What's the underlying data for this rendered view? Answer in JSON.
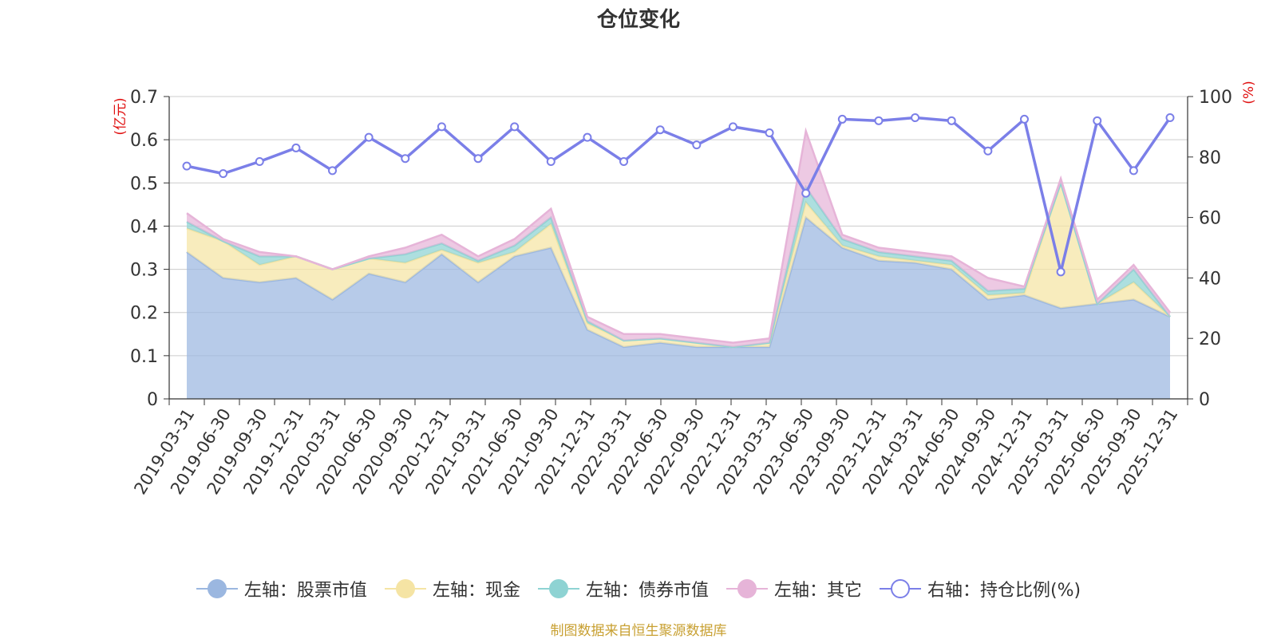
{
  "footer": "制图数据来自恒生聚源数据库",
  "chart_data": {
    "type": "area",
    "title": "仓位变化",
    "ylabel_left": "(亿元)",
    "ylabel_right": "(%)",
    "ylim_left": [
      0,
      0.7
    ],
    "ylim_right": [
      0,
      100
    ],
    "yticks_left": [
      "0",
      "0.1",
      "0.2",
      "0.3",
      "0.4",
      "0.5",
      "0.6",
      "0.7"
    ],
    "yticks_right": [
      "0",
      "20",
      "40",
      "60",
      "80",
      "100"
    ],
    "grid": true,
    "legend_position": "bottom",
    "categories": [
      "2019-03-31",
      "2019-06-30",
      "2019-09-30",
      "2019-12-31",
      "2020-03-31",
      "2020-06-30",
      "2020-09-30",
      "2020-12-31",
      "2021-03-31",
      "2021-06-30",
      "2021-09-30",
      "2021-12-31",
      "2022-03-31",
      "2022-06-30",
      "2022-09-30",
      "2022-12-31",
      "2023-03-31",
      "2023-06-30",
      "2023-09-30",
      "2023-12-31",
      "2024-03-31",
      "2024-06-30",
      "2024-09-30",
      "2024-12-31",
      "2025-03-31",
      "2025-06-30",
      "2025-09-30",
      "2025-12-31"
    ],
    "series": [
      {
        "name": "左轴：股票市值",
        "axis": "left",
        "kind": "stack",
        "color": "#9bb7e0",
        "values": [
          0.34,
          0.28,
          0.27,
          0.28,
          0.23,
          0.29,
          0.27,
          0.335,
          0.27,
          0.33,
          0.35,
          0.16,
          0.12,
          0.13,
          0.12,
          0.12,
          0.12,
          0.42,
          0.35,
          0.32,
          0.315,
          0.3,
          0.23,
          0.24,
          0.21,
          0.22,
          0.23,
          0.19
        ]
      },
      {
        "name": "左轴：现金",
        "axis": "left",
        "kind": "stack",
        "color": "#f5e4a4",
        "values": [
          0.055,
          0.085,
          0.04,
          0.05,
          0.07,
          0.035,
          0.045,
          0.01,
          0.045,
          0.01,
          0.055,
          0.015,
          0.015,
          0.01,
          0.01,
          0.0,
          0.01,
          0.035,
          0.005,
          0.01,
          0.005,
          0.01,
          0.01,
          0.005,
          0.29,
          0.0,
          0.04,
          0.0
        ]
      },
      {
        "name": "左轴：债券市值",
        "axis": "left",
        "kind": "stack",
        "color": "#8ed3d3",
        "values": [
          0.015,
          0.0,
          0.02,
          0.0,
          0.0,
          0.0,
          0.02,
          0.015,
          0.005,
          0.015,
          0.015,
          0.005,
          0.0,
          0.0,
          0.0,
          0.0,
          0.0,
          0.035,
          0.015,
          0.01,
          0.01,
          0.01,
          0.01,
          0.01,
          0.0,
          0.0,
          0.03,
          0.0
        ]
      },
      {
        "name": "左轴：其它",
        "axis": "left",
        "kind": "stack",
        "color": "#e6b4d8",
        "values": [
          0.02,
          0.005,
          0.01,
          0.0,
          0.0,
          0.005,
          0.015,
          0.02,
          0.01,
          0.015,
          0.02,
          0.01,
          0.015,
          0.01,
          0.01,
          0.01,
          0.01,
          0.13,
          0.01,
          0.01,
          0.01,
          0.01,
          0.03,
          0.005,
          0.01,
          0.01,
          0.01,
          0.01
        ]
      },
      {
        "name": "右轴：持仓比例(%)",
        "axis": "right",
        "kind": "line",
        "color": "#7b7fe8",
        "values": [
          77,
          74.5,
          78.5,
          83,
          75.5,
          86.5,
          79.5,
          90,
          79.5,
          90,
          78.5,
          86.5,
          78.5,
          89,
          84,
          90,
          88,
          68,
          92.5,
          92,
          93,
          92,
          82,
          92.5,
          42,
          92,
          75.5,
          93
        ]
      }
    ]
  }
}
